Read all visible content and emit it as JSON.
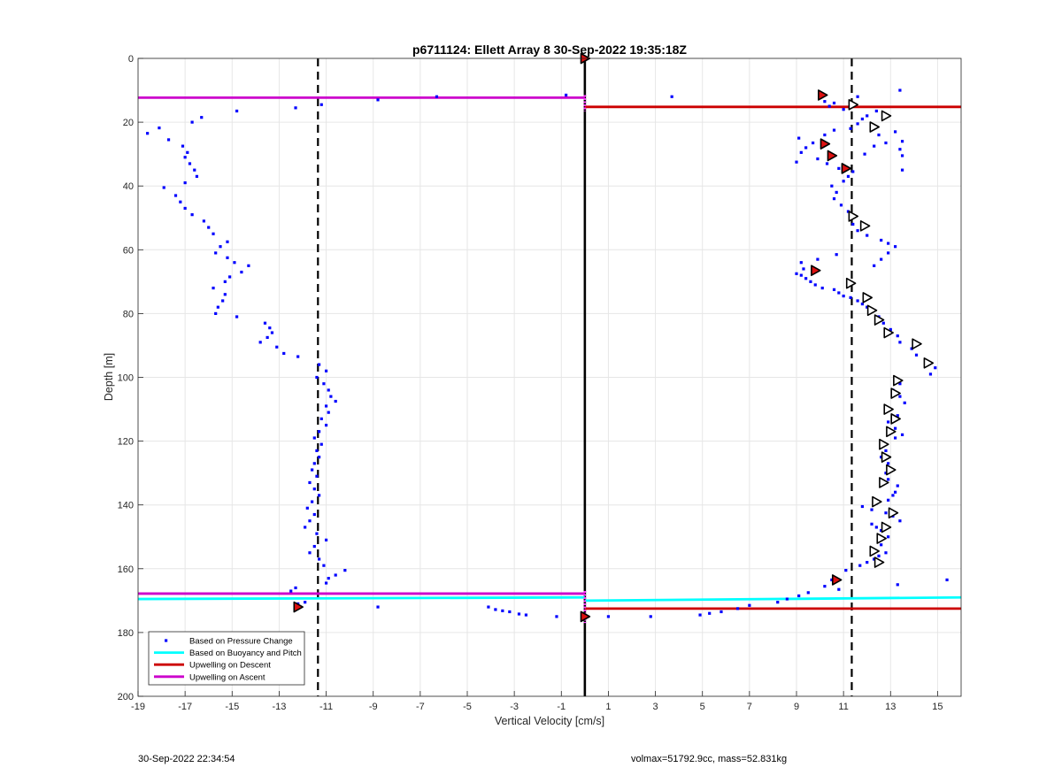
{
  "chart_data": {
    "type": "scatter",
    "title": "p6711124: Ellett Array 8 30-Sep-2022 19:35:18Z",
    "xlabel": "Vertical Velocity [cm/s]",
    "ylabel": "Depth [m]",
    "xlim": [
      -19,
      16
    ],
    "ylim": [
      0,
      200
    ],
    "y_reversed": true,
    "grid": true,
    "x_ticks": [
      -19,
      -17,
      -15,
      -13,
      -11,
      -9,
      -7,
      -5,
      -3,
      -1,
      1,
      3,
      5,
      7,
      9,
      11,
      13,
      15
    ],
    "y_ticks": [
      0,
      20,
      40,
      60,
      80,
      100,
      120,
      140,
      160,
      180,
      200
    ],
    "legend": {
      "position": "bottom-left",
      "entries": [
        {
          "label": "Based on Pressure Change",
          "color": "#0000ff",
          "style": "marker"
        },
        {
          "label": "Based on Buoyancy and Pitch",
          "color": "#00ffff",
          "style": "line"
        },
        {
          "label": "Upwelling on Descent",
          "color": "#cc0000",
          "style": "line"
        },
        {
          "label": "Upwelling on Ascent",
          "color": "#cc00cc",
          "style": "line"
        }
      ]
    },
    "series": [
      {
        "name": "Based on Pressure Change",
        "color": "#0000ff",
        "points": [
          [
            -18.6,
            23.5
          ],
          [
            -18.1,
            21.8
          ],
          [
            -17.7,
            25.5
          ],
          [
            -17.1,
            27.5
          ],
          [
            -16.9,
            29.5
          ],
          [
            -17.0,
            31.0
          ],
          [
            -16.8,
            33.0
          ],
          [
            -16.6,
            35.0
          ],
          [
            -16.5,
            37.0
          ],
          [
            -17.0,
            39.0
          ],
          [
            -17.9,
            40.5
          ],
          [
            -17.4,
            43.0
          ],
          [
            -17.2,
            45.0
          ],
          [
            -17.0,
            47.0
          ],
          [
            -16.7,
            49.0
          ],
          [
            -16.2,
            51.0
          ],
          [
            -16.0,
            53.0
          ],
          [
            -15.8,
            55.0
          ],
          [
            -15.2,
            57.5
          ],
          [
            -15.5,
            59.0
          ],
          [
            -15.7,
            61.0
          ],
          [
            -15.2,
            62.5
          ],
          [
            -14.9,
            64.0
          ],
          [
            -14.3,
            65.0
          ],
          [
            -14.6,
            67.0
          ],
          [
            -15.1,
            68.5
          ],
          [
            -15.3,
            70.0
          ],
          [
            -15.8,
            72.0
          ],
          [
            -15.3,
            74.0
          ],
          [
            -15.4,
            76.0
          ],
          [
            -15.6,
            78.0
          ],
          [
            -15.7,
            80.0
          ],
          [
            -14.8,
            81.0
          ],
          [
            -13.6,
            83.0
          ],
          [
            -13.4,
            84.5
          ],
          [
            -13.3,
            86.0
          ],
          [
            -13.5,
            87.5
          ],
          [
            -13.8,
            89.0
          ],
          [
            -13.1,
            90.5
          ],
          [
            -12.8,
            92.5
          ],
          [
            -12.2,
            93.5
          ],
          [
            -16.3,
            18.5
          ],
          [
            -16.7,
            20.0
          ],
          [
            -14.8,
            16.5
          ],
          [
            -12.3,
            15.5
          ],
          [
            -11.2,
            14.5
          ],
          [
            -8.8,
            13.0
          ],
          [
            -6.3,
            12.0
          ],
          [
            -0.8,
            11.5
          ],
          [
            -11.3,
            96.0
          ],
          [
            -11.0,
            98.0
          ],
          [
            -11.4,
            100.0
          ],
          [
            -11.1,
            102.0
          ],
          [
            -10.9,
            104.0
          ],
          [
            -10.8,
            106.0
          ],
          [
            -10.6,
            107.5
          ],
          [
            -11.0,
            109.0
          ],
          [
            -10.9,
            111.0
          ],
          [
            -11.2,
            113.0
          ],
          [
            -11.0,
            115.0
          ],
          [
            -11.3,
            117.0
          ],
          [
            -11.5,
            119.0
          ],
          [
            -11.2,
            121.0
          ],
          [
            -11.4,
            123.0
          ],
          [
            -11.3,
            125.0
          ],
          [
            -11.5,
            127.0
          ],
          [
            -11.6,
            129.0
          ],
          [
            -11.4,
            131.0
          ],
          [
            -11.7,
            133.0
          ],
          [
            -11.5,
            135.0
          ],
          [
            -11.3,
            137.0
          ],
          [
            -11.6,
            139.0
          ],
          [
            -11.8,
            141.0
          ],
          [
            -11.5,
            143.0
          ],
          [
            -11.7,
            145.0
          ],
          [
            -11.9,
            147.0
          ],
          [
            -11.4,
            149.0
          ],
          [
            -11.0,
            151.0
          ],
          [
            -11.5,
            153.0
          ],
          [
            -11.7,
            155.0
          ],
          [
            -11.3,
            157.0
          ],
          [
            -11.1,
            159.0
          ],
          [
            -10.2,
            160.5
          ],
          [
            -10.6,
            162.0
          ],
          [
            -10.9,
            163.0
          ],
          [
            -11.0,
            164.5
          ],
          [
            -12.3,
            166.0
          ],
          [
            -12.5,
            167.0
          ],
          [
            -12.2,
            171.0
          ],
          [
            -11.9,
            170.5
          ],
          [
            -8.8,
            172.0
          ],
          [
            -4.1,
            172.0
          ],
          [
            -3.8,
            172.8
          ],
          [
            -3.5,
            173.2
          ],
          [
            -3.2,
            173.5
          ],
          [
            -2.8,
            174.2
          ],
          [
            -2.5,
            174.5
          ],
          [
            -1.2,
            175.0
          ],
          [
            1.0,
            175.0
          ],
          [
            2.8,
            175.0
          ],
          [
            4.9,
            174.5
          ],
          [
            5.3,
            174.0
          ],
          [
            5.8,
            173.5
          ],
          [
            6.5,
            172.5
          ],
          [
            7.0,
            171.5
          ],
          [
            8.2,
            170.5
          ],
          [
            8.6,
            169.5
          ],
          [
            9.1,
            168.5
          ],
          [
            9.5,
            167.5
          ],
          [
            10.8,
            166.5
          ],
          [
            10.2,
            165.5
          ],
          [
            10.5,
            163.5
          ],
          [
            11.1,
            160.5
          ],
          [
            11.7,
            159.0
          ],
          [
            12.0,
            158.0
          ],
          [
            12.3,
            157.0
          ],
          [
            12.5,
            156.0
          ],
          [
            12.8,
            155.0
          ],
          [
            12.6,
            152.5
          ],
          [
            12.9,
            150.0
          ],
          [
            12.6,
            148.0
          ],
          [
            12.4,
            147.0
          ],
          [
            12.2,
            146.0
          ],
          [
            13.4,
            145.0
          ],
          [
            13.1,
            143.5
          ],
          [
            12.8,
            142.5
          ],
          [
            12.2,
            141.5
          ],
          [
            11.8,
            140.5
          ],
          [
            12.4,
            139.5
          ],
          [
            12.9,
            138.5
          ],
          [
            13.1,
            137.0
          ],
          [
            13.2,
            136.0
          ],
          [
            13.3,
            134.0
          ],
          [
            12.9,
            132.0
          ],
          [
            12.8,
            130.0
          ],
          [
            13.1,
            129.0
          ],
          [
            12.9,
            127.0
          ],
          [
            12.6,
            125.0
          ],
          [
            12.8,
            123.0
          ],
          [
            12.6,
            121.0
          ],
          [
            13.2,
            119.0
          ],
          [
            13.5,
            118.0
          ],
          [
            13.2,
            116.0
          ],
          [
            12.9,
            114.0
          ],
          [
            13.3,
            112.0
          ],
          [
            13.0,
            110.0
          ],
          [
            13.6,
            108.0
          ],
          [
            13.4,
            106.0
          ],
          [
            13.1,
            104.0
          ],
          [
            13.4,
            102.0
          ],
          [
            14.7,
            99.0
          ],
          [
            14.9,
            97.0
          ],
          [
            14.5,
            95.0
          ],
          [
            14.1,
            93.0
          ],
          [
            13.9,
            91.0
          ],
          [
            13.4,
            89.0
          ],
          [
            13.3,
            87.0
          ],
          [
            13.0,
            85.0
          ],
          [
            12.7,
            83.0
          ],
          [
            12.5,
            81.0
          ],
          [
            12.3,
            79.0
          ],
          [
            12.0,
            78.0
          ],
          [
            11.8,
            77.0
          ],
          [
            11.6,
            76.0
          ],
          [
            11.3,
            75.0
          ],
          [
            11.0,
            74.5
          ],
          [
            10.8,
            73.5
          ],
          [
            10.6,
            72.5
          ],
          [
            10.1,
            72.0
          ],
          [
            9.8,
            71.0
          ],
          [
            9.6,
            70.0
          ],
          [
            9.4,
            69.0
          ],
          [
            9.2,
            68.0
          ],
          [
            9.0,
            67.5
          ],
          [
            9.3,
            66.0
          ],
          [
            9.2,
            64.0
          ],
          [
            9.9,
            63.0
          ],
          [
            10.7,
            61.5
          ],
          [
            12.3,
            65.0
          ],
          [
            12.6,
            63.0
          ],
          [
            12.9,
            61.0
          ],
          [
            13.2,
            59.0
          ],
          [
            12.9,
            58.0
          ],
          [
            12.6,
            57.0
          ],
          [
            12.0,
            55.5
          ],
          [
            11.6,
            54.0
          ],
          [
            11.4,
            52.0
          ],
          [
            11.3,
            50.0
          ],
          [
            11.2,
            48.0
          ],
          [
            10.9,
            46.0
          ],
          [
            10.6,
            44.0
          ],
          [
            10.7,
            42.0
          ],
          [
            10.5,
            40.0
          ],
          [
            11.0,
            38.5
          ],
          [
            11.2,
            37.0
          ],
          [
            11.4,
            35.5
          ],
          [
            10.8,
            34.5
          ],
          [
            10.3,
            33.0
          ],
          [
            9.9,
            31.5
          ],
          [
            9.0,
            32.5
          ],
          [
            9.2,
            29.5
          ],
          [
            9.4,
            28.0
          ],
          [
            9.7,
            26.5
          ],
          [
            9.1,
            25.0
          ],
          [
            10.2,
            24.0
          ],
          [
            10.6,
            22.5
          ],
          [
            11.3,
            22.0
          ],
          [
            11.6,
            20.5
          ],
          [
            11.8,
            19.0
          ],
          [
            12.0,
            18.0
          ],
          [
            12.4,
            16.5
          ],
          [
            11.0,
            16.0
          ],
          [
            10.4,
            15.0
          ],
          [
            10.6,
            14.0
          ],
          [
            10.2,
            13.5
          ],
          [
            11.6,
            12.0
          ],
          [
            3.7,
            12.0
          ],
          [
            13.4,
            10.0
          ],
          [
            11.9,
            30.0
          ],
          [
            12.3,
            27.5
          ],
          [
            12.8,
            26.5
          ],
          [
            13.5,
            26.0
          ],
          [
            13.4,
            28.5
          ],
          [
            13.5,
            30.5
          ],
          [
            13.5,
            35.0
          ],
          [
            12.5,
            24.0
          ],
          [
            13.2,
            23.0
          ],
          [
            13.3,
            165.0
          ],
          [
            15.4,
            163.5
          ]
        ]
      },
      {
        "name": "Based on Buoyancy and Pitch",
        "color": "#00ffff",
        "segments": [
          {
            "x": [
              -19,
              0
            ],
            "y": [
              169.5,
              169.0
            ]
          },
          {
            "x": [
              0,
              16
            ],
            "y": [
              170.0,
              169.0
            ]
          }
        ]
      },
      {
        "name": "Upwelling on Descent",
        "color": "#cc0000",
        "segments": [
          {
            "x": [
              0,
              16
            ],
            "y": [
              15.2,
              15.2
            ]
          },
          {
            "x": [
              0,
              16
            ],
            "y": [
              172.5,
              172.5
            ]
          }
        ]
      },
      {
        "name": "Upwelling on Ascent",
        "color": "#cc00cc",
        "segments": [
          {
            "x": [
              -19,
              0
            ],
            "y": [
              12.3,
              12.3
            ]
          },
          {
            "x": [
              -19,
              0
            ],
            "y": [
              167.8,
              167.8
            ]
          }
        ]
      }
    ],
    "reference_lines": {
      "vertical_solid": {
        "x": 0,
        "color": "#000000"
      },
      "vertical_dashed": [
        {
          "x": -11.35,
          "color": "#000000"
        },
        {
          "x": 11.35,
          "color": "#000000"
        }
      ],
      "center_magenta_marks": [
        {
          "x": 0,
          "y": [
            11.5,
            16.5
          ]
        },
        {
          "x": 0,
          "y": [
            167,
            177
          ]
        }
      ]
    },
    "markers": {
      "white_triangles": [
        [
          11.4,
          14.5
        ],
        [
          12.8,
          18.0
        ],
        [
          12.3,
          21.5
        ],
        [
          11.4,
          49.5
        ],
        [
          11.9,
          52.5
        ],
        [
          11.3,
          70.5
        ],
        [
          12.0,
          75.0
        ],
        [
          12.2,
          79.0
        ],
        [
          12.5,
          82.0
        ],
        [
          12.9,
          86.0
        ],
        [
          14.1,
          89.5
        ],
        [
          14.6,
          95.5
        ],
        [
          13.3,
          101.0
        ],
        [
          13.2,
          105.0
        ],
        [
          12.9,
          110.0
        ],
        [
          13.2,
          113.0
        ],
        [
          13.0,
          117.0
        ],
        [
          12.7,
          121.0
        ],
        [
          12.8,
          125.0
        ],
        [
          13.0,
          129.0
        ],
        [
          12.7,
          133.0
        ],
        [
          12.4,
          139.0
        ],
        [
          13.1,
          142.5
        ],
        [
          12.8,
          147.0
        ],
        [
          12.6,
          150.5
        ],
        [
          12.3,
          154.5
        ],
        [
          12.5,
          158.0
        ]
      ],
      "red_triangles": [
        [
          0,
          0
        ],
        [
          10.1,
          11.5
        ],
        [
          10.2,
          26.8
        ],
        [
          10.5,
          30.5
        ],
        [
          11.1,
          34.5
        ],
        [
          9.8,
          66.5
        ],
        [
          10.7,
          163.5
        ],
        [
          -12.2,
          172.0
        ],
        [
          0,
          175.0
        ]
      ]
    }
  },
  "footer": {
    "left": "30-Sep-2022 22:34:54",
    "right": "volmax=51792.9cc, mass=52.831kg"
  }
}
